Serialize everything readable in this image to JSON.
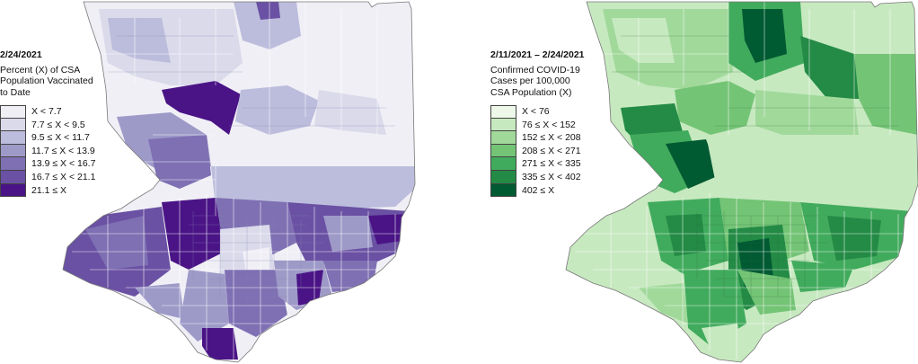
{
  "maps": [
    {
      "id": "vaccination",
      "date": "2/24/2021",
      "subtitle": "Percent (X) of CSA Population Vaccinated to Date",
      "legend": [
        {
          "label": "X < 7.7",
          "color": "#f0eff6"
        },
        {
          "label": "7.7 ≤ X < 9.5",
          "color": "#dadaeb"
        },
        {
          "label": "9.5 ≤ X < 11.7",
          "color": "#bcbddc"
        },
        {
          "label": "11.7 ≤ X < 13.9",
          "color": "#9e9ac8"
        },
        {
          "label": "13.9 ≤ X < 16.7",
          "color": "#7e70b3"
        },
        {
          "label": "16.7 ≤ X < 21.1",
          "color": "#6a51a3"
        },
        {
          "label": "21.1 ≤ X",
          "color": "#4a1486"
        }
      ]
    },
    {
      "id": "cases",
      "date": "2/11/2021 – 2/24/2021",
      "subtitle": "Confirmed COVID-19 Cases per 100,000 CSA Population (X)",
      "legend": [
        {
          "label": "X < 76",
          "color": "#edf8e9"
        },
        {
          "label": "76 ≤ X < 152",
          "color": "#c7e9c0"
        },
        {
          "label": "152 ≤ X < 208",
          "color": "#a1d99b"
        },
        {
          "label": "208 ≤ X < 271",
          "color": "#74c476"
        },
        {
          "label": "271 ≤ X < 335",
          "color": "#41ab5d"
        },
        {
          "label": "335 ≤ X < 402",
          "color": "#238b45"
        },
        {
          "label": "402 ≤ X",
          "color": "#005a32"
        }
      ]
    }
  ]
}
